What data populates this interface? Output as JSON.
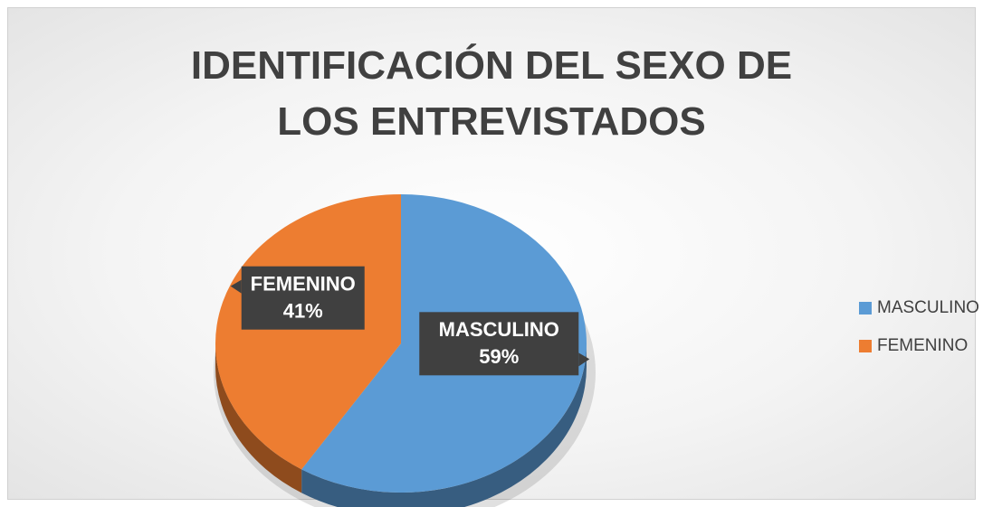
{
  "chart_data": {
    "type": "pie",
    "title": "IDENTIFICACIÓN DEL SEXO DE LOS ENTREVISTADOS",
    "categories": [
      "MASCULINO",
      "FEMENINO"
    ],
    "values": [
      59,
      41
    ],
    "value_labels": [
      "59%",
      "41%"
    ],
    "colors": [
      "#5b9bd5",
      "#ed7d31"
    ],
    "legend": "right"
  }
}
